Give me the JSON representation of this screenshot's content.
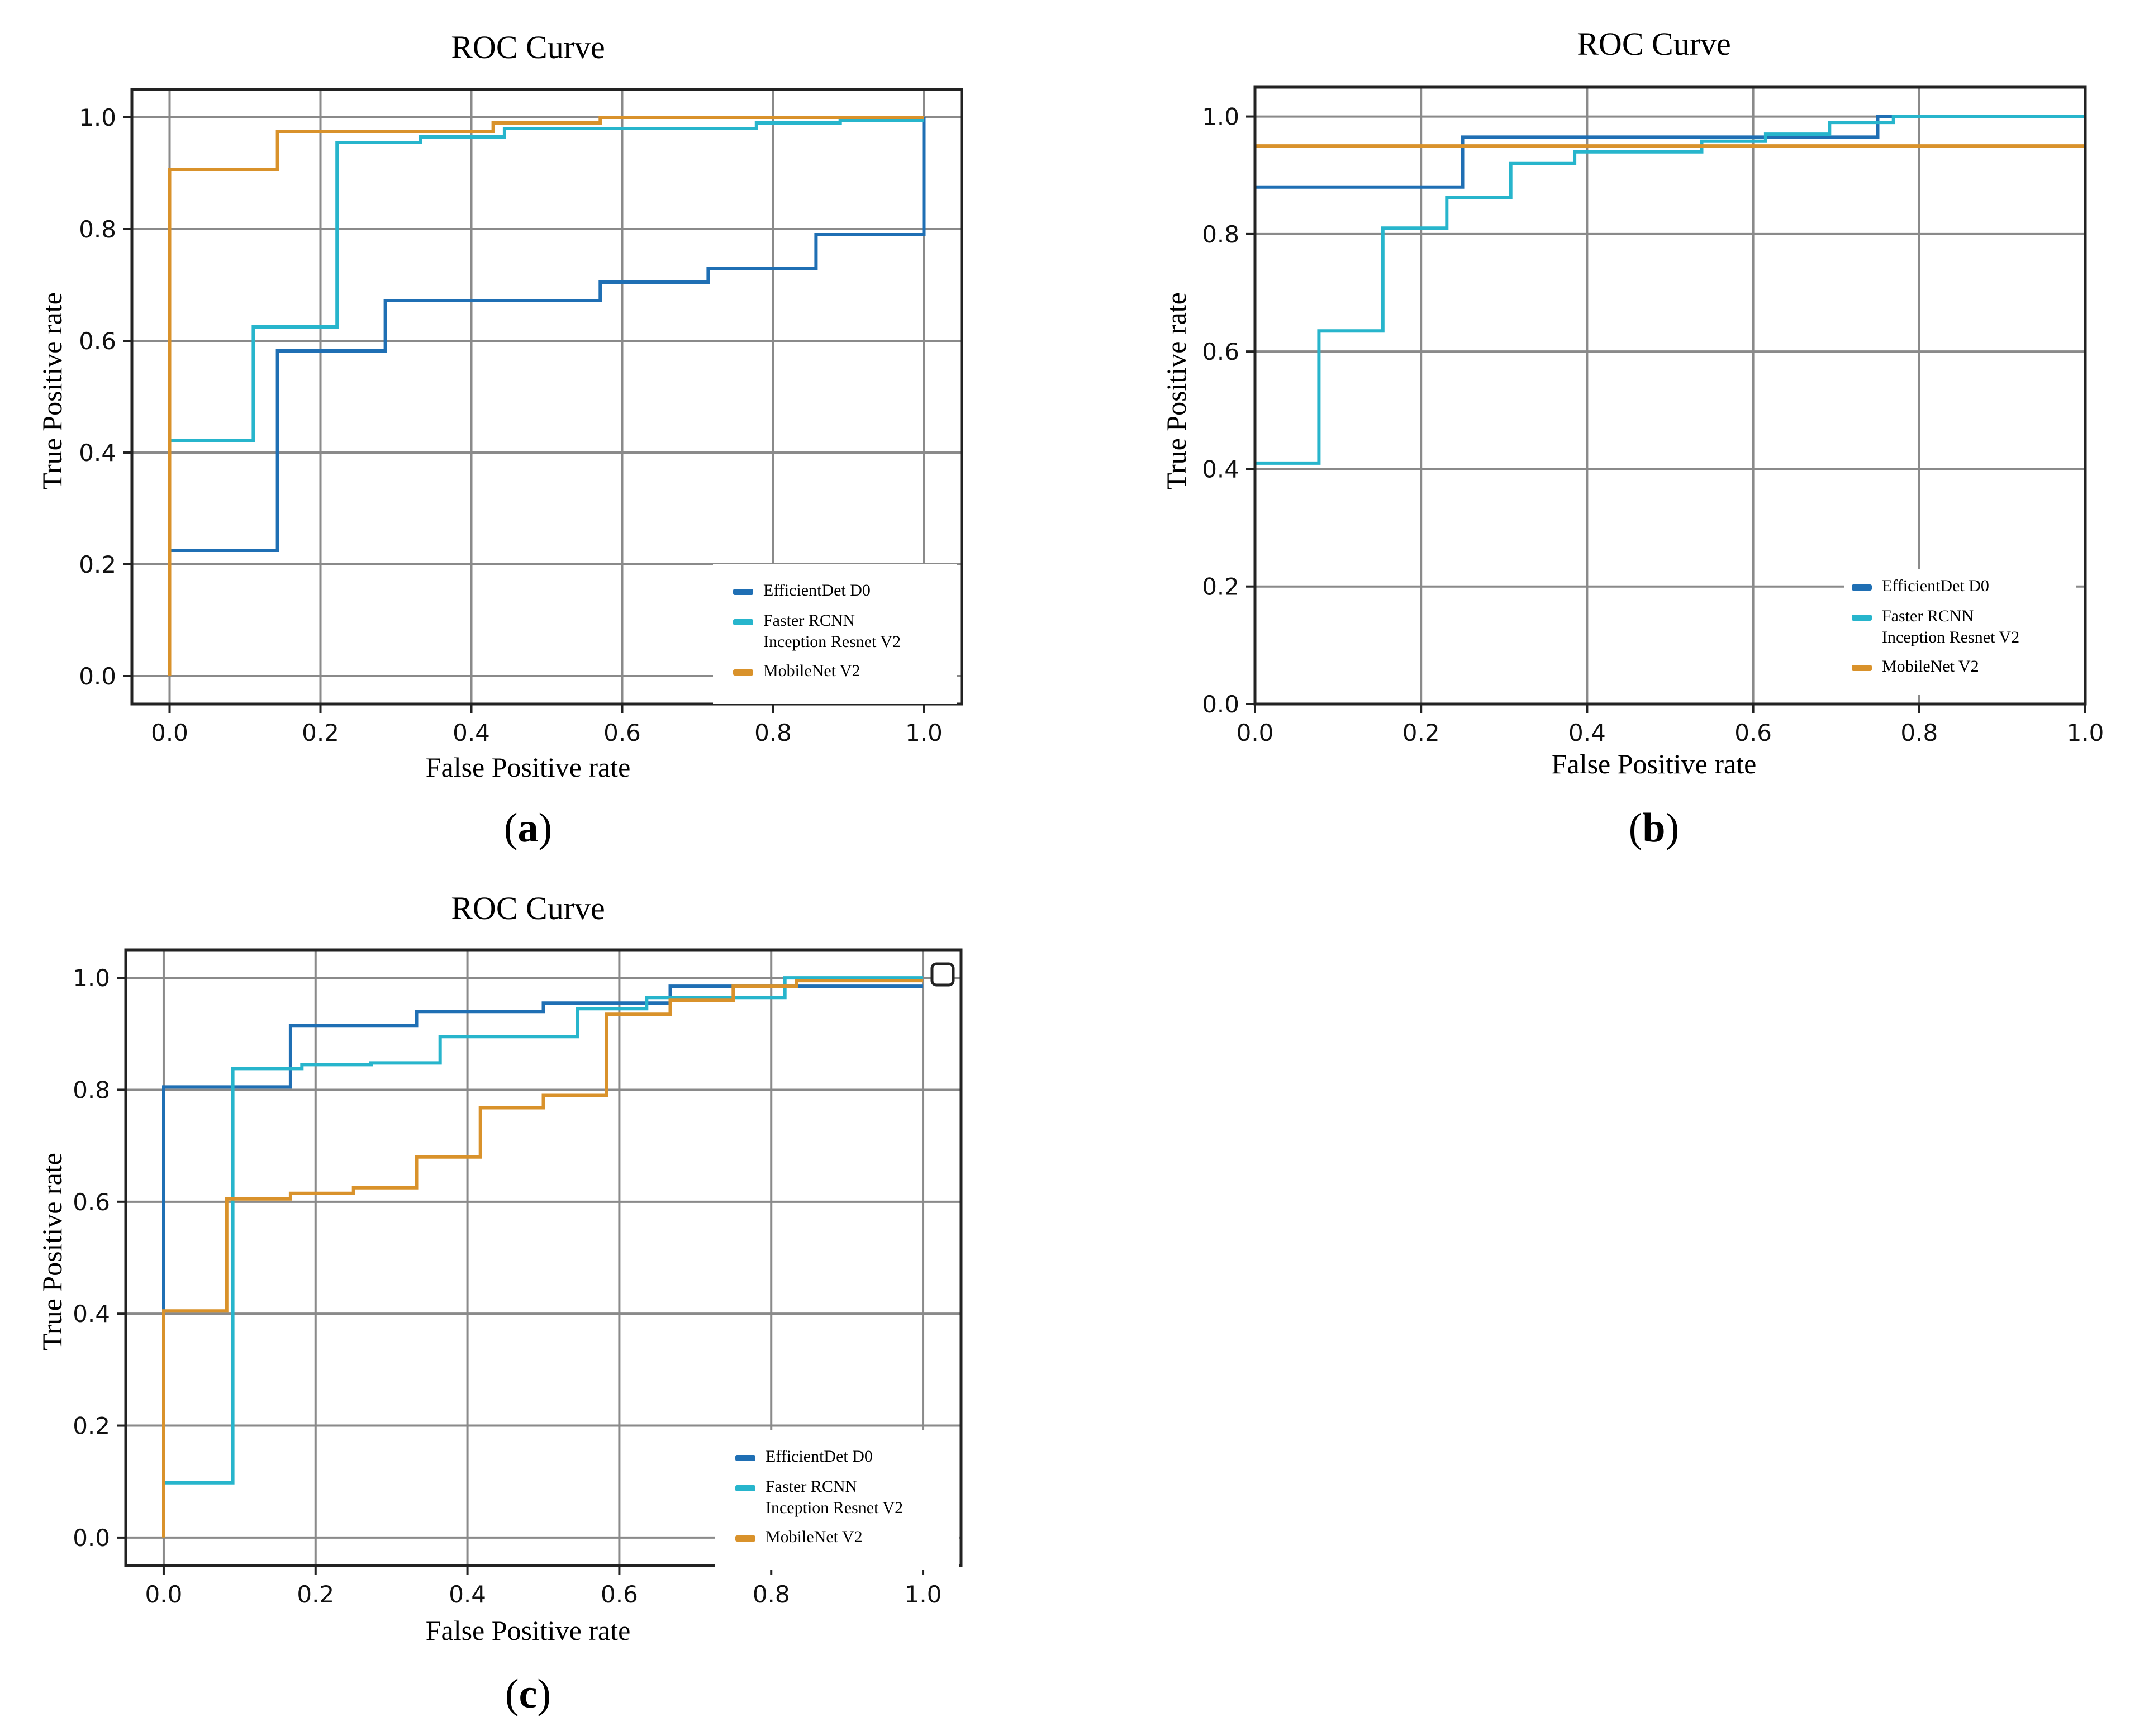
{
  "figure": {
    "captions": [
      "a",
      "b",
      "c"
    ]
  },
  "colors": {
    "efficientdet": "#1f6fb4",
    "faster_rcnn": "#27b5cc",
    "mobilenet": "#d9922b",
    "grid": "#8a8a8a",
    "axes": "#222222"
  },
  "chart_data": [
    {
      "id": "a",
      "type": "line",
      "title": "ROC Curve",
      "xlabel": "False Positive rate",
      "ylabel": "True Positive rate",
      "xlim": [
        -0.05,
        1.05
      ],
      "ylim": [
        -0.05,
        1.05
      ],
      "xticks": [
        0.0,
        0.2,
        0.4,
        0.6,
        0.8,
        1.0
      ],
      "yticks": [
        0.0,
        0.2,
        0.4,
        0.6,
        0.8,
        1.0
      ],
      "xtick_labels": [
        "0.0",
        "0.2",
        "0.4",
        "0.6",
        "0.8",
        "1.0"
      ],
      "ytick_labels": [
        "0.0",
        "0.2",
        "0.4",
        "0.6",
        "0.8",
        "1.0"
      ],
      "grid": true,
      "legend_position": "lower-right",
      "series": [
        {
          "name": "EfficientDet D0",
          "color_key": "efficientdet",
          "x": [
            0.0,
            0.0,
            0.143,
            0.143,
            0.286,
            0.286,
            0.571,
            0.571,
            0.714,
            0.714,
            0.857,
            0.857,
            1.0,
            1.0
          ],
          "y": [
            0.0,
            0.225,
            0.225,
            0.582,
            0.582,
            0.672,
            0.672,
            0.705,
            0.705,
            0.73,
            0.73,
            0.79,
            0.79,
            1.0
          ]
        },
        {
          "name": "Faster RCNN\nInception Resnet V2",
          "color_key": "faster_rcnn",
          "x": [
            0.0,
            0.0,
            0.111,
            0.111,
            0.222,
            0.222,
            0.333,
            0.333,
            0.444,
            0.444,
            0.778,
            0.778,
            0.889,
            0.889,
            1.0
          ],
          "y": [
            0.0,
            0.422,
            0.422,
            0.625,
            0.625,
            0.955,
            0.955,
            0.965,
            0.965,
            0.98,
            0.98,
            0.99,
            0.99,
            0.995,
            0.995
          ]
        },
        {
          "name": "MobileNet V2",
          "color_key": "mobilenet",
          "x": [
            0.0,
            0.0,
            0.143,
            0.143,
            0.429,
            0.429,
            0.571,
            0.571,
            1.0
          ],
          "y": [
            0.0,
            0.907,
            0.907,
            0.975,
            0.975,
            0.99,
            0.99,
            1.0,
            1.0
          ]
        }
      ],
      "legend": [
        "EfficientDet D0",
        "Faster RCNN\nInception Resnet V2",
        "MobileNet V2"
      ]
    },
    {
      "id": "b",
      "type": "line",
      "title": "ROC Curve",
      "xlabel": "False Positive rate",
      "ylabel": "True Positive rate",
      "xlim": [
        0.0,
        1.0
      ],
      "ylim": [
        0.0,
        1.05
      ],
      "xticks": [
        0.0,
        0.2,
        0.4,
        0.6,
        0.8,
        1.0
      ],
      "yticks": [
        0.0,
        0.2,
        0.4,
        0.6,
        0.8,
        1.0
      ],
      "xtick_labels": [
        "0.0",
        "0.2",
        "0.4",
        "0.6",
        "0.8",
        "1.0"
      ],
      "ytick_labels": [
        "0.0",
        "0.2",
        "0.4",
        "0.6",
        "0.8",
        "1.0"
      ],
      "grid": true,
      "legend_position": "lower-right",
      "series": [
        {
          "name": "EfficientDet D0",
          "color_key": "efficientdet",
          "x": [
            0.0,
            0.25,
            0.25,
            0.75,
            0.75,
            1.0
          ],
          "y": [
            0.88,
            0.88,
            0.965,
            0.965,
            1.0,
            1.0
          ]
        },
        {
          "name": "Faster RCNN\nInception Resnet V2",
          "color_key": "faster_rcnn",
          "x": [
            0.0,
            0.077,
            0.077,
            0.154,
            0.154,
            0.231,
            0.231,
            0.308,
            0.308,
            0.385,
            0.385,
            0.538,
            0.538,
            0.615,
            0.615,
            0.692,
            0.692,
            0.769,
            0.769,
            1.0
          ],
          "y": [
            0.41,
            0.41,
            0.635,
            0.635,
            0.81,
            0.81,
            0.862,
            0.862,
            0.92,
            0.92,
            0.94,
            0.94,
            0.958,
            0.958,
            0.97,
            0.97,
            0.99,
            0.99,
            1.0,
            1.0
          ]
        },
        {
          "name": "MobileNet V2",
          "color_key": "mobilenet",
          "x": [
            0.0,
            1.0
          ],
          "y": [
            0.95,
            0.95
          ]
        }
      ],
      "legend": [
        "EfficientDet D0",
        "Faster RCNN\nInception Resnet V2",
        "MobileNet V2"
      ]
    },
    {
      "id": "c",
      "type": "line",
      "title": "ROC Curve",
      "xlabel": "False Positive rate",
      "ylabel": "True Positive rate",
      "xlim": [
        -0.05,
        1.05
      ],
      "ylim": [
        -0.05,
        1.05
      ],
      "xticks": [
        0.0,
        0.2,
        0.4,
        0.6,
        0.8,
        1.0
      ],
      "yticks": [
        0.0,
        0.2,
        0.4,
        0.6,
        0.8,
        1.0
      ],
      "xtick_labels": [
        "0.0",
        "0.2",
        "0.4",
        "0.6",
        "0.8",
        "1.0"
      ],
      "ytick_labels": [
        "0.0",
        "0.2",
        "0.4",
        "0.6",
        "0.8",
        "1.0"
      ],
      "grid": true,
      "legend_position": "lower-right",
      "series": [
        {
          "name": "EfficientDet D0",
          "color_key": "efficientdet",
          "x": [
            0.0,
            0.0,
            0.167,
            0.167,
            0.333,
            0.333,
            0.5,
            0.5,
            0.667,
            0.667,
            1.0
          ],
          "y": [
            0.0,
            0.805,
            0.805,
            0.915,
            0.915,
            0.94,
            0.94,
            0.955,
            0.955,
            0.985,
            0.985
          ]
        },
        {
          "name": "Faster RCNN\nInception Resnet V2",
          "color_key": "faster_rcnn",
          "x": [
            0.0,
            0.0,
            0.091,
            0.091,
            0.182,
            0.182,
            0.273,
            0.273,
            0.364,
            0.364,
            0.545,
            0.545,
            0.636,
            0.636,
            0.818,
            0.818,
            1.0
          ],
          "y": [
            0.0,
            0.098,
            0.098,
            0.838,
            0.838,
            0.845,
            0.845,
            0.848,
            0.848,
            0.895,
            0.895,
            0.945,
            0.945,
            0.965,
            0.965,
            1.0,
            1.0
          ]
        },
        {
          "name": "MobileNet V2",
          "color_key": "mobilenet",
          "x": [
            0.0,
            0.0,
            0.083,
            0.083,
            0.167,
            0.167,
            0.25,
            0.25,
            0.333,
            0.333,
            0.417,
            0.417,
            0.5,
            0.5,
            0.583,
            0.583,
            0.667,
            0.667,
            0.75,
            0.75,
            0.833,
            0.833,
            1.0
          ],
          "y": [
            0.0,
            0.405,
            0.405,
            0.605,
            0.605,
            0.615,
            0.615,
            0.625,
            0.625,
            0.68,
            0.68,
            0.768,
            0.768,
            0.79,
            0.79,
            0.935,
            0.935,
            0.96,
            0.96,
            0.985,
            0.985,
            0.995,
            0.995
          ]
        }
      ],
      "legend": [
        "EfficientDet D0",
        "Faster RCNN\nInception Resnet V2",
        "MobileNet V2"
      ]
    }
  ]
}
